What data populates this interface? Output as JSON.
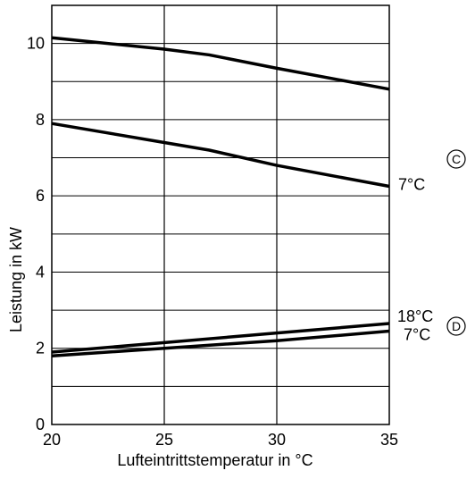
{
  "chart_data": {
    "type": "line",
    "xlabel": "Lufteintrittstemperatur in °C",
    "ylabel": "Leistung in kW",
    "xlim": [
      20,
      35
    ],
    "ylim": [
      0,
      11
    ],
    "x_ticks": [
      20,
      25,
      30,
      35
    ],
    "y_ticks": [
      0,
      2,
      4,
      6,
      8,
      10
    ],
    "grid": true,
    "series": [
      {
        "name": "",
        "x": [
          20,
          25,
          27,
          30,
          35
        ],
        "y": [
          10.15,
          9.85,
          9.7,
          9.35,
          8.8
        ]
      },
      {
        "name": "7°C",
        "x": [
          20,
          25,
          27,
          30,
          35
        ],
        "y": [
          7.9,
          7.4,
          7.2,
          6.8,
          6.25
        ]
      },
      {
        "name": "18°C",
        "x": [
          20,
          25,
          30,
          35
        ],
        "y": [
          1.9,
          2.15,
          2.4,
          2.65
        ]
      },
      {
        "name": "7°C",
        "x": [
          20,
          25,
          30,
          35
        ],
        "y": [
          1.8,
          2.0,
          2.2,
          2.45
        ]
      }
    ],
    "markers": [
      {
        "text": "C",
        "series_group": "upper"
      },
      {
        "text": "D",
        "series_group": "lower"
      }
    ]
  }
}
